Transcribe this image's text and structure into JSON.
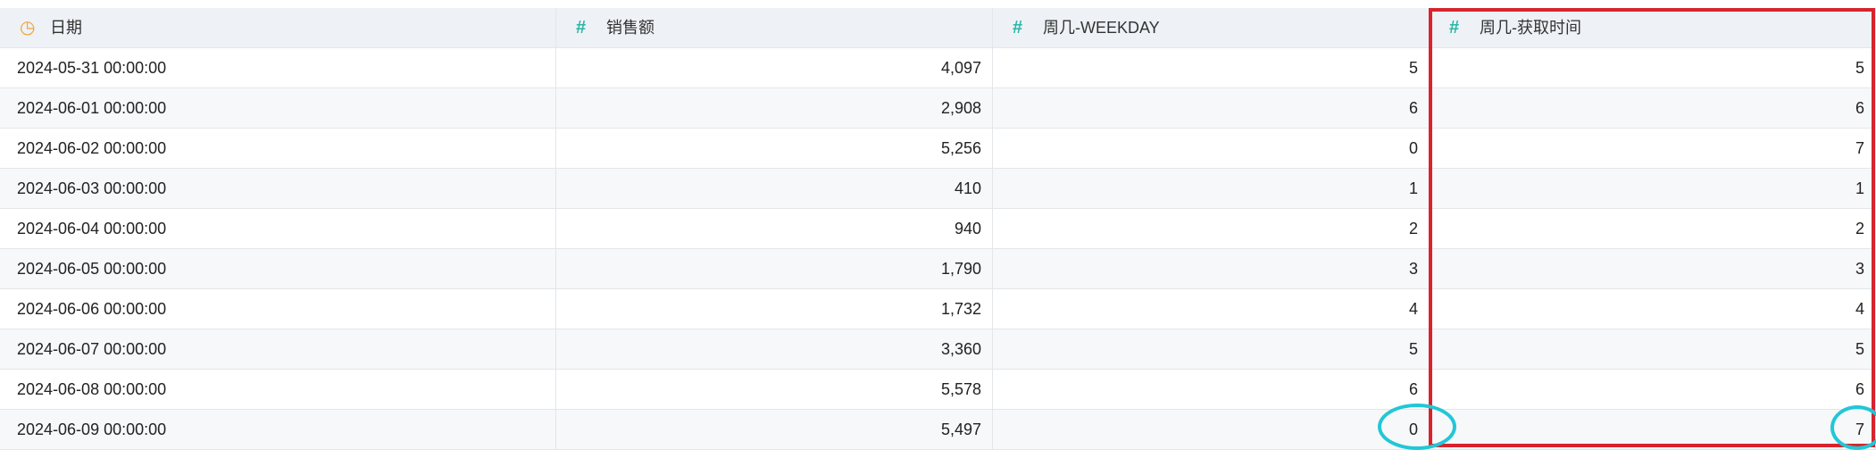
{
  "table": {
    "columns": [
      "日期",
      "销售额",
      "周几-WEEKDAY",
      "周几-获取时间"
    ],
    "rows": [
      [
        "2024-05-31 00:00:00",
        "4,097",
        "5",
        "5"
      ],
      [
        "2024-06-01 00:00:00",
        "2,908",
        "6",
        "6"
      ],
      [
        "2024-06-02 00:00:00",
        "5,256",
        "0",
        "7"
      ],
      [
        "2024-06-03 00:00:00",
        "410",
        "1",
        "1"
      ],
      [
        "2024-06-04 00:00:00",
        "940",
        "2",
        "2"
      ],
      [
        "2024-06-05 00:00:00",
        "1,790",
        "3",
        "3"
      ],
      [
        "2024-06-06 00:00:00",
        "1,732",
        "4",
        "4"
      ],
      [
        "2024-06-07 00:00:00",
        "3,360",
        "5",
        "5"
      ],
      [
        "2024-06-08 00:00:00",
        "5,578",
        "6",
        "6"
      ],
      [
        "2024-06-09 00:00:00",
        "5,497",
        "0",
        "7"
      ]
    ]
  }
}
